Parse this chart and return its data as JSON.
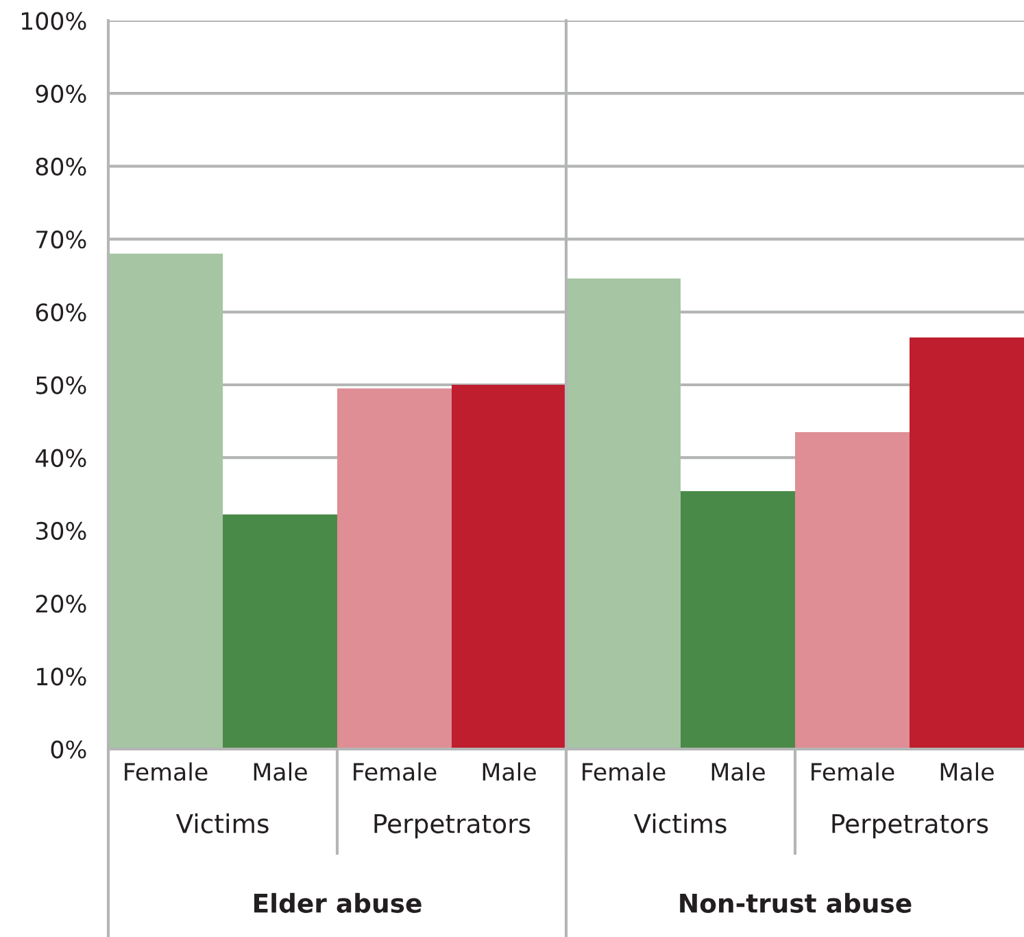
{
  "chart_data": {
    "type": "bar",
    "categories": [
      "Female",
      "Male",
      "Female",
      "Male",
      "Female",
      "Male",
      "Female",
      "Male"
    ],
    "values": [
      68,
      32.2,
      49.5,
      50,
      64.6,
      35.4,
      43.5,
      56.5
    ],
    "colors": [
      "#a6c5a3",
      "#4a8a48",
      "#de8e94",
      "#be1e2d",
      "#a6c5a3",
      "#4a8a48",
      "#de8e94",
      "#be1e2d"
    ],
    "ylim": [
      0,
      100
    ],
    "yticks": [
      {
        "value": 0,
        "label": "0%"
      },
      {
        "value": 10,
        "label": "10%"
      },
      {
        "value": 20,
        "label": "20%"
      },
      {
        "value": 30,
        "label": "30%"
      },
      {
        "value": 40,
        "label": "40%"
      },
      {
        "value": 50,
        "label": "50%"
      },
      {
        "value": 60,
        "label": "60%"
      },
      {
        "value": 70,
        "label": "70%"
      },
      {
        "value": 80,
        "label": "80%"
      },
      {
        "value": 90,
        "label": "90%"
      },
      {
        "value": 100,
        "label": "100%"
      }
    ],
    "grid": "y",
    "annotations": [
      "Victims",
      "Perpetrators",
      "Victims",
      "Perpetrators",
      "Elder abuse",
      "Non-trust abuse"
    ]
  }
}
